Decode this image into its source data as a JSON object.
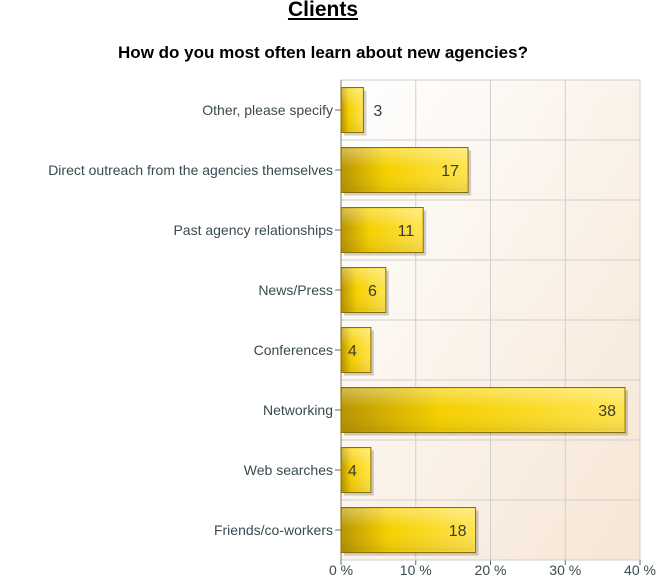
{
  "page": {
    "title": "Clients"
  },
  "chart_data": {
    "type": "bar",
    "orientation": "horizontal",
    "title": "How do you most often learn about new agencies?",
    "categories": [
      "Other, please specify",
      "Direct outreach from the agencies themselves",
      "Past agency relationships",
      "News/Press",
      "Conferences",
      "Networking",
      "Web searches",
      "Friends/co-workers"
    ],
    "values": [
      3,
      17,
      11,
      6,
      4,
      38,
      4,
      18
    ],
    "x_ticks": [
      "0 %",
      "10 %",
      "20 %",
      "30 %",
      "40 %"
    ],
    "xlim": [
      0,
      40
    ],
    "grid": true,
    "colors": {
      "bar": "#f5d000",
      "bar_dark": "#b89400",
      "bar_edge": "#8a6f00",
      "plot_bg_top": "#ffffff",
      "plot_bg_bottom": "#f6e6d4",
      "grid": "#cfcfcf"
    }
  }
}
